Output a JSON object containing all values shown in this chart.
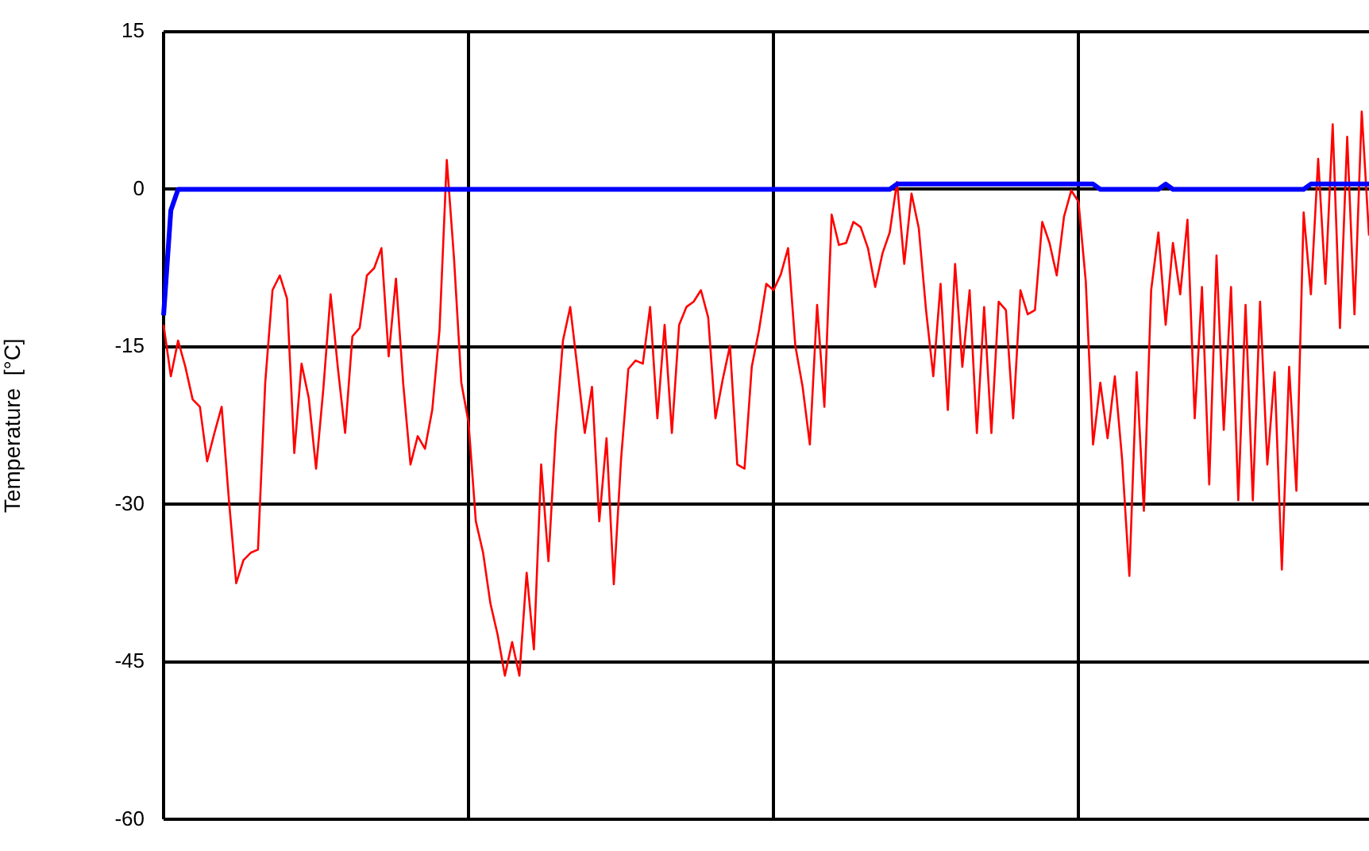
{
  "chart_data": {
    "type": "line",
    "ylabel": "Temperature  [°C]",
    "categories": [
      null,
      null,
      null,
      null,
      null,
      null,
      null,
      null,
      null,
      null,
      null,
      null,
      null,
      null,
      null,
      null,
      null,
      null,
      null,
      null,
      null,
      null,
      null,
      null,
      null,
      null,
      null,
      null,
      null,
      null,
      null,
      null,
      null,
      null,
      null,
      null,
      null,
      null,
      null,
      null,
      null,
      null,
      null,
      null,
      null,
      null,
      null,
      null,
      null,
      null,
      null,
      null,
      null,
      null,
      null,
      null,
      null,
      null,
      null,
      null,
      null,
      null,
      null,
      null,
      null,
      null,
      null,
      null,
      null,
      null,
      null,
      null,
      null,
      null,
      null,
      null,
      null,
      null,
      null,
      null,
      null,
      null,
      null,
      null,
      null,
      null,
      null,
      null,
      null,
      null,
      null,
      null,
      null,
      null,
      null,
      null,
      null,
      null,
      null,
      null,
      null,
      null,
      null,
      null,
      null,
      null,
      null,
      null,
      null,
      null,
      null,
      null,
      null,
      null,
      null,
      null,
      null,
      null,
      null,
      null,
      null,
      null,
      null,
      null,
      null,
      null,
      null,
      null,
      null,
      null,
      null,
      null,
      null,
      null,
      null,
      null,
      null,
      null,
      null,
      null,
      null,
      null,
      null,
      null,
      null,
      null,
      null,
      null,
      null,
      null,
      null,
      null,
      null,
      null,
      null,
      null,
      null,
      null,
      null,
      null,
      null,
      null,
      null,
      null,
      null,
      null,
      null
    ],
    "ylim": [
      -60,
      15
    ],
    "yticks": [
      -60,
      -45,
      -30,
      -15,
      0,
      15
    ],
    "grid": true,
    "tick_labels": "y",
    "marker": "none",
    "line_style": "solid",
    "series": [
      {
        "color": "#ff0000",
        "values": [
          -12.9,
          -17.8,
          -14.4,
          -16.9,
          -20,
          -20.7,
          -25.9,
          -23.2,
          -20.7,
          -29.6,
          -37.5,
          -35.3,
          -34.6,
          -34.3,
          -18.4,
          -9.6,
          -8.2,
          -10.4,
          -25.1,
          -16.6,
          -19.9,
          -26.6,
          -19,
          -10,
          -17,
          -23.2,
          -14,
          -13.2,
          -8.2,
          -7.5,
          -5.6,
          -15.9,
          -8.5,
          -18.5,
          -26.2,
          -23.5,
          -24.7,
          -21,
          -13.4,
          2.8,
          -6.6,
          -18.4,
          -22.2,
          -31.6,
          -34.6,
          -39.4,
          -42.4,
          -46.3,
          -43.1,
          -46.3,
          -36.5,
          -43.8,
          -26.2,
          -35.4,
          -23.2,
          -14.4,
          -11.2,
          -17.1,
          -23.2,
          -18.8,
          -31.6,
          -23.7,
          -37.6,
          -25.7,
          -17.1,
          -16.3,
          -16.6,
          -11.2,
          -21.8,
          -12.9,
          -23.2,
          -12.9,
          -11.2,
          -10.7,
          -9.6,
          -12.2,
          -21.8,
          -18.1,
          -14.9,
          -26.2,
          -26.6,
          -16.9,
          -13.4,
          -9,
          -9.6,
          -8.1,
          -5.6,
          -14.9,
          -18.8,
          -24.3,
          -11,
          -20.7,
          -2.4,
          -5.3,
          -5.1,
          -3.1,
          -3.6,
          -5.6,
          -9.3,
          -6.1,
          -4.1,
          0.7,
          -7.1,
          -0.4,
          -3.7,
          -11.5,
          -17.8,
          -9,
          -21,
          -7.1,
          -16.9,
          -9.6,
          -23.2,
          -11.2,
          -23.2,
          -10.7,
          -11.5,
          -21.8,
          -9.6,
          -11.9,
          -11.5,
          -3.1,
          -5.1,
          -8.2,
          -2.6,
          -0.1,
          -1.2,
          -8.8,
          -24.3,
          -18.4,
          -23.7,
          -17.8,
          -25.7,
          -36.8,
          -17.4,
          -30.6,
          -9.6,
          -4.1,
          -12.9,
          -5.1,
          -10,
          -2.9,
          -21.8,
          -9.3,
          -28.1,
          -6.3,
          -22.9,
          -9.3,
          -29.6,
          -11,
          -29.6,
          -10.7,
          -26.2,
          -17.4,
          -36.2,
          -16.9,
          -28.7,
          -2.2,
          -10,
          2.9,
          -9,
          6.2,
          -13.2,
          5,
          -11.9,
          7.4,
          -4.4
        ]
      },
      {
        "color": "#0000ff",
        "values": [
          -12,
          -2,
          0,
          0,
          0,
          0,
          0,
          0,
          0,
          0,
          0,
          0,
          0,
          0,
          0,
          0,
          0,
          0,
          0,
          0,
          0,
          0,
          0,
          0,
          0,
          0,
          0,
          0,
          0,
          0,
          0,
          0,
          0,
          0,
          0,
          0,
          0,
          0,
          0,
          0,
          0,
          0,
          0,
          0,
          0,
          0,
          0,
          0,
          0,
          0,
          0,
          0,
          0,
          0,
          0,
          0,
          0,
          0,
          0,
          0,
          0,
          0,
          0,
          0,
          0,
          0,
          0,
          0,
          0,
          0,
          0,
          0,
          0,
          0,
          0,
          0,
          0,
          0,
          0,
          0,
          0,
          0,
          0,
          0,
          0,
          0,
          0,
          0,
          0,
          0,
          0,
          0,
          0,
          0,
          0,
          0,
          0,
          0,
          0,
          0,
          0,
          0.5,
          0.5,
          0.5,
          0.5,
          0.5,
          0.5,
          0.5,
          0.5,
          0.5,
          0.5,
          0.5,
          0.5,
          0.5,
          0.5,
          0.5,
          0.5,
          0.5,
          0.5,
          0.5,
          0.5,
          0.5,
          0.5,
          0.5,
          0.5,
          0.5,
          0.5,
          0.5,
          0.5,
          0,
          0,
          0,
          0,
          0,
          0,
          0,
          0,
          0,
          0.5,
          0,
          0,
          0,
          0,
          0,
          0,
          0,
          0,
          0,
          0,
          0,
          0,
          0,
          0,
          0,
          0,
          0,
          0,
          0,
          0.5,
          0.5,
          0.5,
          0.5,
          0.5,
          0.5,
          0.5,
          0.5,
          0.5
        ]
      }
    ]
  }
}
